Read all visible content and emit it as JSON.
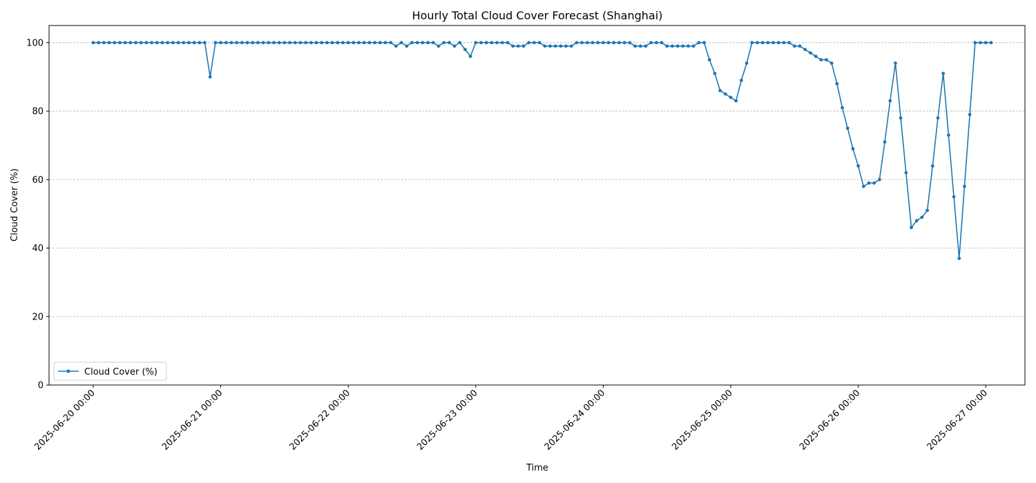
{
  "chart_data": {
    "type": "line",
    "title": "Hourly Total Cloud Cover Forecast (Shanghai)",
    "xlabel": "Time",
    "ylabel": "Cloud Cover (%)",
    "ylim": [
      0,
      105
    ],
    "yticks": [
      0,
      20,
      40,
      60,
      80,
      100
    ],
    "grid": "horizontal-dashed",
    "legend": {
      "position": "lower-left"
    },
    "x_ticks": [
      "2025-06-20 00:00",
      "2025-06-21 00:00",
      "2025-06-22 00:00",
      "2025-06-23 00:00",
      "2025-06-24 00:00",
      "2025-06-25 00:00",
      "2025-06-26 00:00",
      "2025-06-27 00:00"
    ],
    "x_start": "2025-06-20 00:00",
    "x_interval": "1 hour",
    "series": [
      {
        "name": "Cloud Cover (%)",
        "color": "#1f77b4",
        "marker": "circle",
        "values": [
          100,
          100,
          100,
          100,
          100,
          100,
          100,
          100,
          100,
          100,
          100,
          100,
          100,
          100,
          100,
          100,
          100,
          100,
          100,
          100,
          100,
          100,
          90,
          100,
          100,
          100,
          100,
          100,
          100,
          100,
          100,
          100,
          100,
          100,
          100,
          100,
          100,
          100,
          100,
          100,
          100,
          100,
          100,
          100,
          100,
          100,
          100,
          100,
          100,
          100,
          100,
          100,
          100,
          100,
          100,
          100,
          100,
          99,
          100,
          99,
          100,
          100,
          100,
          100,
          100,
          99,
          100,
          100,
          99,
          100,
          98,
          96,
          100,
          100,
          100,
          100,
          100,
          100,
          100,
          99,
          99,
          99,
          100,
          100,
          100,
          99,
          99,
          99,
          99,
          99,
          99,
          100,
          100,
          100,
          100,
          100,
          100,
          100,
          100,
          100,
          100,
          100,
          99,
          99,
          99,
          100,
          100,
          100,
          99,
          99,
          99,
          99,
          99,
          99,
          100,
          100,
          95,
          91,
          86,
          85,
          84,
          83,
          89,
          94,
          100,
          100,
          100,
          100,
          100,
          100,
          100,
          100,
          99,
          99,
          98,
          97,
          96,
          95,
          95,
          94,
          88,
          81,
          75,
          69,
          64,
          58,
          59,
          59,
          60,
          71,
          83,
          94,
          78,
          62,
          46,
          48,
          49,
          51,
          64,
          78,
          91,
          73,
          55,
          37,
          58,
          79,
          100,
          100,
          100,
          100
        ]
      }
    ]
  }
}
